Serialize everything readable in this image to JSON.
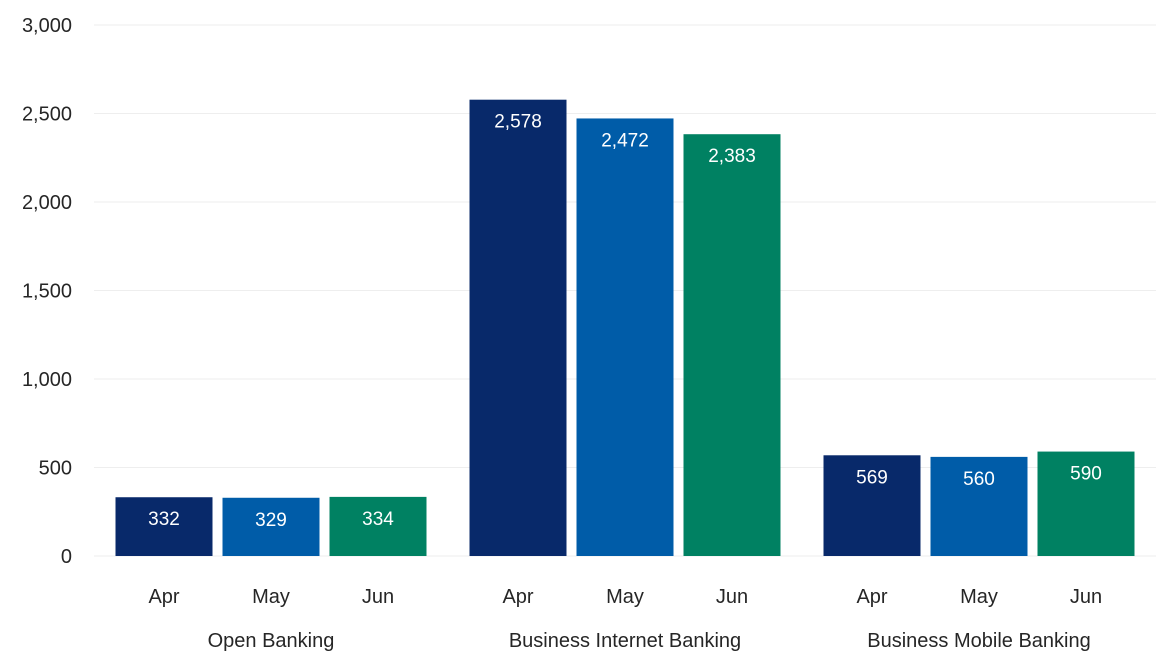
{
  "chart_data": {
    "type": "bar",
    "title": "",
    "xlabel": "",
    "ylabel": "",
    "ylim": [
      0,
      3000
    ],
    "yticks": [
      0,
      500,
      1000,
      1500,
      2000,
      2500,
      3000
    ],
    "ytick_labels": [
      "0",
      "500",
      "1,000",
      "1,500",
      "2,000",
      "2,500",
      "3,000"
    ],
    "grid": true,
    "legend": "none",
    "groups": [
      {
        "label": "Open Banking",
        "bars": [
          {
            "category": "Apr",
            "value": 332,
            "label": "332"
          },
          {
            "category": "May",
            "value": 329,
            "label": "329"
          },
          {
            "category": "Jun",
            "value": 334,
            "label": "334"
          }
        ]
      },
      {
        "label": "Business Internet Banking",
        "bars": [
          {
            "category": "Apr",
            "value": 2578,
            "label": "2,578"
          },
          {
            "category": "May",
            "value": 2472,
            "label": "2,472"
          },
          {
            "category": "Jun",
            "value": 2383,
            "label": "2,383"
          }
        ]
      },
      {
        "label": "Business Mobile Banking",
        "bars": [
          {
            "category": "Apr",
            "value": 569,
            "label": "569"
          },
          {
            "category": "May",
            "value": 560,
            "label": "560"
          },
          {
            "category": "Jun",
            "value": 590,
            "label": "590"
          }
        ]
      }
    ],
    "colors": {
      "Apr": "#08296a",
      "May": "#005ca8",
      "Jun": "#008162"
    }
  }
}
